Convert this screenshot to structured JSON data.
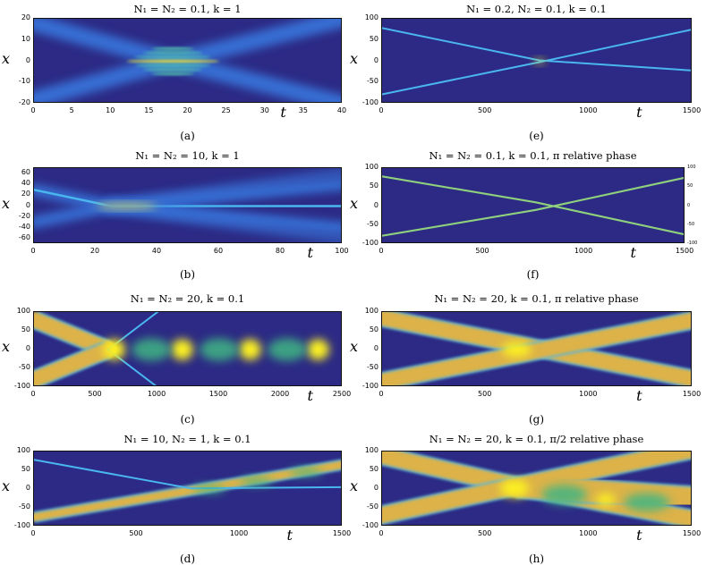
{
  "chart_data": [
    {
      "id": "a",
      "type": "heatmap",
      "title": "N₁ = N₂ = 0.1, k = 1",
      "caption": "(a)",
      "xlabel": "t",
      "ylabel": "x",
      "xlim": [
        0,
        40
      ],
      "ylim": [
        -20,
        20
      ],
      "xticks": [
        "0",
        "5",
        "10",
        "15",
        "20",
        "25",
        "30",
        "35",
        "40"
      ],
      "yticks": [
        "20",
        "10",
        "0",
        "-10",
        "-20"
      ],
      "xticks_values": [
        0,
        5,
        10,
        15,
        20,
        25,
        30,
        35,
        40
      ],
      "yticks_values": [
        20,
        10,
        0,
        -10,
        -20
      ],
      "xlabel_after_tick": 6,
      "trajectories": [
        {
          "points": [
            [
              0,
              18
            ],
            [
              18,
              0
            ],
            [
              40,
              -20
            ]
          ],
          "width": 8,
          "style": "wide-blue"
        },
        {
          "points": [
            [
              0,
              -18
            ],
            [
              18,
              0
            ],
            [
              40,
              20
            ]
          ],
          "width": 8,
          "style": "wide-blue"
        }
      ],
      "blobs": [
        {
          "x": 18,
          "y": 0,
          "rx": 6,
          "ry": 7,
          "style": "fringes"
        }
      ]
    },
    {
      "id": "b",
      "type": "heatmap",
      "title": "N₁ = N₂ = 10, k = 1",
      "caption": "(b)",
      "xlabel": "t",
      "ylabel": "x",
      "xlim": [
        0,
        100
      ],
      "ylim": [
        -70,
        70
      ],
      "xticks": [
        "0",
        "20",
        "40",
        "60",
        "80",
        "100"
      ],
      "yticks": [
        "60",
        "40",
        "20",
        "0",
        "-20",
        "-40",
        "-60"
      ],
      "xticks_values": [
        0,
        20,
        40,
        60,
        80,
        100
      ],
      "yticks_values": [
        60,
        40,
        20,
        0,
        -20,
        -40,
        -60
      ],
      "xlabel_after_tick": 4,
      "trajectories": [
        {
          "points": [
            [
              0,
              30
            ],
            [
              25,
              0
            ],
            [
              100,
              -40
            ]
          ],
          "width": 22,
          "style": "wide-blue"
        },
        {
          "points": [
            [
              0,
              -30
            ],
            [
              25,
              0
            ],
            [
              100,
              40
            ]
          ],
          "width": 22,
          "style": "wide-blue"
        },
        {
          "points": [
            [
              0,
              30
            ],
            [
              25,
              0
            ],
            [
              100,
              0
            ]
          ],
          "width": 4,
          "style": "thin-cyan"
        },
        {
          "points": [
            [
              25,
              0
            ],
            [
              100,
              60
            ]
          ],
          "width": 25,
          "style": "faint-blue"
        },
        {
          "points": [
            [
              25,
              0
            ],
            [
              100,
              -60
            ]
          ],
          "width": 25,
          "style": "faint-blue"
        }
      ],
      "blobs": [
        {
          "x": 30,
          "y": 0,
          "rx": 10,
          "ry": 4,
          "style": "yellow-line"
        }
      ]
    },
    {
      "id": "c",
      "type": "heatmap",
      "title": "N₁ = N₂ = 20, k = 0.1",
      "caption": "(c)",
      "xlabel": "t",
      "ylabel": "x",
      "xlim": [
        0,
        2500
      ],
      "ylim": [
        -100,
        100
      ],
      "xticks": [
        "0",
        "500",
        "1000",
        "1500",
        "2000",
        "2500"
      ],
      "yticks": [
        "100",
        "50",
        "0",
        "-50",
        "-100"
      ],
      "xticks_values": [
        0,
        500,
        1000,
        1500,
        2000,
        2500
      ],
      "yticks_values": [
        100,
        50,
        0,
        -50,
        -100
      ],
      "xlabel_after_tick": 4,
      "trajectories": [
        {
          "points": [
            [
              0,
              80
            ],
            [
              600,
              0
            ]
          ],
          "width": 42,
          "style": "orange"
        },
        {
          "points": [
            [
              0,
              -80
            ],
            [
              600,
              0
            ]
          ],
          "width": 42,
          "style": "orange"
        },
        {
          "points": [
            [
              600,
              0
            ],
            [
              2500,
              0
            ]
          ],
          "width": 95,
          "style": "orange"
        },
        {
          "points": [
            [
              600,
              0
            ],
            [
              1000,
              100
            ]
          ],
          "width": 3,
          "style": "thin-cyan"
        },
        {
          "points": [
            [
              600,
              0
            ],
            [
              1000,
              -100
            ]
          ],
          "width": 3,
          "style": "thin-cyan"
        }
      ],
      "blobs": [
        {
          "x": 650,
          "y": 0,
          "rx": 90,
          "ry": 28,
          "style": "yellow"
        },
        {
          "x": 1200,
          "y": 0,
          "rx": 90,
          "ry": 28,
          "style": "yellow"
        },
        {
          "x": 1750,
          "y": 0,
          "rx": 90,
          "ry": 28,
          "style": "yellow"
        },
        {
          "x": 2300,
          "y": 0,
          "rx": 90,
          "ry": 28,
          "style": "yellow"
        },
        {
          "x": 950,
          "y": 0,
          "rx": 160,
          "ry": 30,
          "style": "green"
        },
        {
          "x": 1500,
          "y": 0,
          "rx": 160,
          "ry": 30,
          "style": "green"
        },
        {
          "x": 2050,
          "y": 0,
          "rx": 160,
          "ry": 30,
          "style": "green"
        }
      ]
    },
    {
      "id": "d",
      "type": "heatmap",
      "title": "N₁ = 10, N₂ = 1, k = 0.1",
      "caption": "(d)",
      "xlabel": "t",
      "ylabel": "x",
      "xlim": [
        0,
        1500
      ],
      "ylim": [
        -100,
        100
      ],
      "xticks": [
        "0",
        "500",
        "1000",
        "1500"
      ],
      "yticks": [
        "100",
        "50",
        "0",
        "-50",
        "-100"
      ],
      "xticks_values": [
        0,
        500,
        1000,
        1500
      ],
      "yticks_values": [
        100,
        50,
        0,
        -50,
        -100
      ],
      "xlabel_after_tick": 2,
      "trajectories": [
        {
          "points": [
            [
              0,
              -75
            ],
            [
              1500,
              65
            ]
          ],
          "width": 22,
          "style": "orange"
        },
        {
          "points": [
            [
              0,
              78
            ],
            [
              760,
              2
            ],
            [
              1500,
              5
            ]
          ],
          "width": 3,
          "style": "thin-cyan"
        }
      ],
      "blobs": [
        {
          "x": 850,
          "y": 0,
          "rx": 80,
          "ry": 10,
          "style": "green"
        },
        {
          "x": 1080,
          "y": 20,
          "rx": 80,
          "ry": 10,
          "style": "green"
        },
        {
          "x": 1320,
          "y": 45,
          "rx": 80,
          "ry": 10,
          "style": "green"
        }
      ]
    },
    {
      "id": "e",
      "type": "heatmap",
      "title": "N₁ = 0.2, N₂ = 0.1, k = 0.1",
      "caption": "(e)",
      "xlabel": "t",
      "ylabel": "x",
      "xlim": [
        0,
        1500
      ],
      "ylim": [
        -100,
        100
      ],
      "xticks": [
        "0",
        "500",
        "1000",
        "1500"
      ],
      "yticks": [
        "100",
        "50",
        "0",
        "-50",
        "-100"
      ],
      "xticks_values": [
        0,
        500,
        1000,
        1500
      ],
      "yticks_values": [
        100,
        50,
        0,
        -50,
        -100
      ],
      "xlabel_after_tick": 2,
      "trajectories": [
        {
          "points": [
            [
              0,
              78
            ],
            [
              760,
              2
            ],
            [
              1500,
              -22
            ]
          ],
          "width": 4,
          "style": "thin-cyan"
        },
        {
          "points": [
            [
              0,
              -78
            ],
            [
              760,
              -2
            ],
            [
              1500,
              75
            ]
          ],
          "width": 4,
          "style": "thin-cyan"
        }
      ],
      "blobs": [
        {
          "x": 760,
          "y": 0,
          "rx": 25,
          "ry": 5,
          "style": "yellow"
        }
      ]
    },
    {
      "id": "f",
      "type": "heatmap",
      "title": "N₁ = N₂ = 0.1, k = 0.1, π relative phase",
      "caption": "(f)",
      "xlabel": "t",
      "ylabel": "x",
      "xlim": [
        0,
        1500
      ],
      "ylim": [
        -100,
        100
      ],
      "xticks": [
        "0",
        "500",
        "1000",
        "1500"
      ],
      "yticks": [
        "100",
        "50",
        "0",
        "-50",
        "-100"
      ],
      "xticks_values": [
        0,
        500,
        1000,
        1500
      ],
      "yticks_values": [
        100,
        50,
        0,
        -50,
        -100
      ],
      "rticks": [
        "100",
        "50",
        "0",
        "-50",
        "-100"
      ],
      "xlabel_after_tick": 2,
      "trajectories": [
        {
          "points": [
            [
              0,
              78
            ],
            [
              760,
              10
            ],
            [
              1500,
              -75
            ]
          ],
          "width": 5,
          "style": "thin-green"
        },
        {
          "points": [
            [
              0,
              -78
            ],
            [
              760,
              -10
            ],
            [
              1500,
              75
            ]
          ],
          "width": 5,
          "style": "thin-green"
        }
      ],
      "blobs": []
    },
    {
      "id": "g",
      "type": "heatmap",
      "title": "N₁ = N₂ = 20, k = 0.1, π relative phase",
      "caption": "(g)",
      "xlabel": "t",
      "ylabel": "x",
      "xlim": [
        0,
        1500
      ],
      "ylim": [
        -100,
        100
      ],
      "xticks": [
        "0",
        "500",
        "1000",
        "1500"
      ],
      "yticks": [
        "100",
        "50",
        "0",
        "-50",
        "-100"
      ],
      "xticks_values": [
        0,
        500,
        1000,
        1500
      ],
      "yticks_values": [
        100,
        50,
        0,
        -50,
        -100
      ],
      "xlabel_after_tick": 2,
      "trajectories": [
        {
          "points": [
            [
              -50,
              90
            ],
            [
              1500,
              -78
            ]
          ],
          "width": 42,
          "style": "orange"
        },
        {
          "points": [
            [
              -50,
              -90
            ],
            [
              1500,
              78
            ]
          ],
          "width": 42,
          "style": "orange"
        }
      ],
      "blobs": [
        {
          "x": 650,
          "y": 0,
          "rx": 70,
          "ry": 20,
          "style": "yellow"
        }
      ]
    },
    {
      "id": "h",
      "type": "heatmap",
      "title": "N₁ = N₂ = 20, k = 0.1, π/2 relative phase",
      "caption": "(h)",
      "xlabel": "t",
      "ylabel": "x",
      "xlim": [
        0,
        1500
      ],
      "ylim": [
        -100,
        100
      ],
      "xticks": [
        "0",
        "500",
        "1000",
        "1500"
      ],
      "yticks": [
        "100",
        "50",
        "0",
        "-50",
        "-100"
      ],
      "xticks_values": [
        0,
        500,
        1000,
        1500
      ],
      "yticks_values": [
        100,
        50,
        0,
        -50,
        -100
      ],
      "xlabel_after_tick": 2,
      "trajectories": [
        {
          "points": [
            [
              -50,
              95
            ],
            [
              650,
              8
            ],
            [
              1500,
              -80
            ]
          ],
          "width": 44,
          "style": "orange"
        },
        {
          "points": [
            [
              -50,
              -75
            ],
            [
              650,
              8
            ],
            [
              1100,
              60
            ],
            [
              1500,
              105
            ]
          ],
          "width": 44,
          "style": "orange"
        },
        {
          "points": [
            [
              650,
              8
            ],
            [
              1500,
              -25
            ]
          ],
          "width": 60,
          "style": "orange"
        }
      ],
      "blobs": [
        {
          "x": 640,
          "y": 2,
          "rx": 70,
          "ry": 24,
          "style": "yellow"
        },
        {
          "x": 880,
          "y": -15,
          "rx": 110,
          "ry": 26,
          "style": "green"
        },
        {
          "x": 1280,
          "y": -35,
          "rx": 110,
          "ry": 24,
          "style": "green"
        },
        {
          "x": 1080,
          "y": -28,
          "rx": 45,
          "ry": 16,
          "style": "yellow"
        }
      ]
    }
  ],
  "colors": {
    "background": "#2c2a84",
    "orange": "#dcb24a",
    "yellow": "#fbef22",
    "green": "#3fb583",
    "cyan": "#4ab6ee",
    "blue": "#3872d8"
  }
}
